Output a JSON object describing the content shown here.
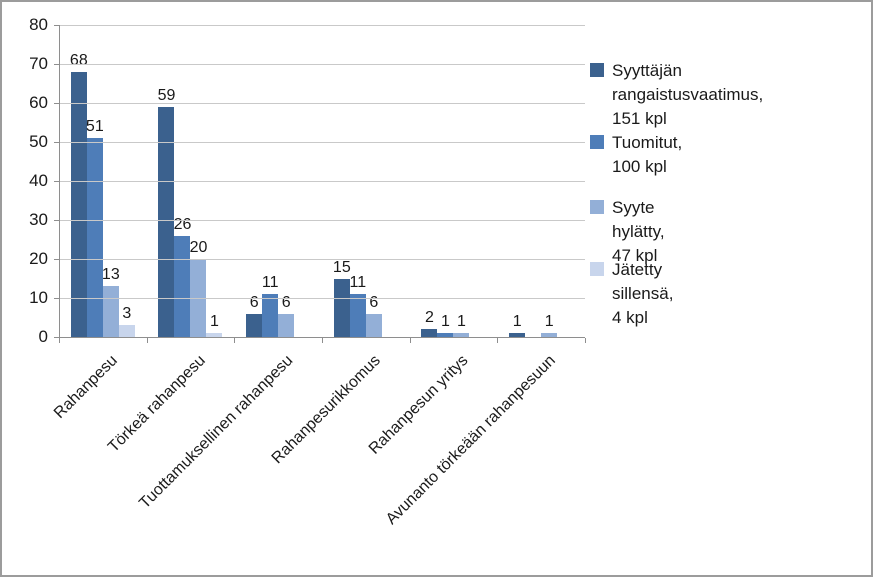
{
  "chart_data": {
    "type": "bar",
    "title": "",
    "xlabel": "",
    "ylabel": "",
    "categories": [
      "Rahanpesu",
      "Törkeä rahanpesu",
      "Tuottamuksellinen rahanpesu",
      "Rahanpesurikkomus",
      "Rahanpesun yritys",
      "Avunanto törkeään rahanpesuun"
    ],
    "series": [
      {
        "name": "Syyttäjän rangaistusvaatimus, 151 kpl",
        "color": "#3b618e",
        "values": [
          68,
          59,
          6,
          15,
          2,
          1
        ]
      },
      {
        "name": "Tuomitut, 100 kpl",
        "color": "#4e7db8",
        "values": [
          51,
          26,
          11,
          11,
          1,
          0
        ]
      },
      {
        "name": "Syyte hylätty, 47 kpl",
        "color": "#93afd7",
        "values": [
          13,
          20,
          6,
          6,
          1,
          1
        ]
      },
      {
        "name": "Jätetty sillensä, 4 kpl",
        "color": "#c8d5ec",
        "values": [
          3,
          1,
          0,
          0,
          0,
          0
        ]
      }
    ],
    "ylim": [
      0,
      80
    ],
    "yticks": [
      0,
      10,
      20,
      30,
      40,
      50,
      60,
      70,
      80
    ],
    "grid": true,
    "data_labels": true,
    "legend_position": "right"
  },
  "legend": {
    "items": [
      {
        "label": "Syyttäjän rangaistusvaatimus,\n151 kpl",
        "color": "#3b618e"
      },
      {
        "label": "Tuomitut, 100 kpl",
        "color": "#4e7db8"
      },
      {
        "label": "Syyte hylätty, 47 kpl",
        "color": "#93afd7"
      },
      {
        "label": "Jätetty sillensä, 4 kpl",
        "color": "#c8d5ec"
      }
    ]
  },
  "style": {
    "grid_color": "#c9c9c9",
    "axis_color": "#8e8e8e",
    "text_color": "#1a1a1a",
    "border_color": "#9c9c9c",
    "background": "#ffffff"
  }
}
